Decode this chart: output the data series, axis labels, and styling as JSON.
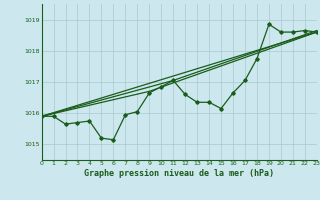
{
  "title": "Graphe pression niveau de la mer (hPa)",
  "bg_color": "#cce8ee",
  "grid_color": "#aac8d0",
  "line_color": "#1a5c1a",
  "x_min": 0,
  "x_max": 23,
  "y_min": 1014.5,
  "y_max": 1019.5,
  "y_ticks": [
    1015,
    1016,
    1017,
    1018,
    1019
  ],
  "x_ticks": [
    0,
    1,
    2,
    3,
    4,
    5,
    6,
    7,
    8,
    9,
    10,
    11,
    12,
    13,
    14,
    15,
    16,
    17,
    18,
    19,
    20,
    21,
    22,
    23
  ],
  "main_line": [
    [
      0,
      1015.9
    ],
    [
      1,
      1015.9
    ],
    [
      2,
      1015.65
    ],
    [
      3,
      1015.7
    ],
    [
      4,
      1015.75
    ],
    [
      5,
      1015.2
    ],
    [
      6,
      1015.15
    ],
    [
      7,
      1015.95
    ],
    [
      8,
      1016.05
    ],
    [
      9,
      1016.65
    ],
    [
      10,
      1016.85
    ],
    [
      11,
      1017.05
    ],
    [
      12,
      1016.6
    ],
    [
      13,
      1016.35
    ],
    [
      14,
      1016.35
    ],
    [
      15,
      1016.15
    ],
    [
      16,
      1016.65
    ],
    [
      17,
      1017.05
    ],
    [
      18,
      1017.75
    ],
    [
      19,
      1018.85
    ],
    [
      20,
      1018.6
    ],
    [
      21,
      1018.6
    ],
    [
      22,
      1018.65
    ],
    [
      23,
      1018.6
    ]
  ],
  "trend_line1": [
    [
      0,
      1015.9
    ],
    [
      23,
      1018.6
    ]
  ],
  "trend_line2": [
    [
      0,
      1015.9
    ],
    [
      9,
      1016.7
    ],
    [
      23,
      1018.6
    ]
  ],
  "trend_line3": [
    [
      0,
      1015.9
    ],
    [
      11,
      1017.05
    ],
    [
      23,
      1018.65
    ]
  ]
}
